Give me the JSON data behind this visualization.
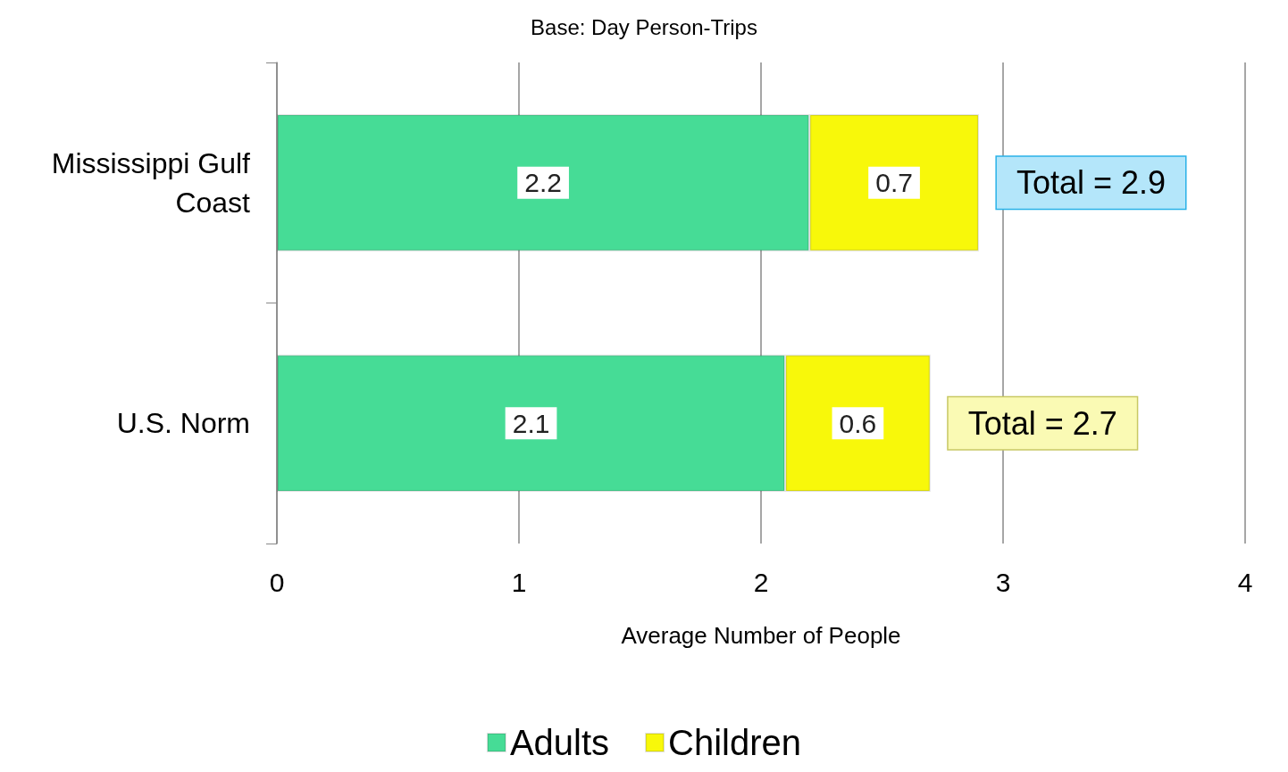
{
  "chart_data": {
    "type": "bar",
    "orientation": "horizontal",
    "stacked": true,
    "title": "Base: Day Person-Trips",
    "xlabel": "Average Number of People",
    "categories": [
      "Mississippi Gulf\nCoast",
      "U.S. Norm"
    ],
    "series": [
      {
        "name": "Adults",
        "color": "#46dc96",
        "values": [
          2.2,
          2.1
        ]
      },
      {
        "name": "Children",
        "color": "#f8f80a",
        "values": [
          0.7,
          0.6
        ]
      }
    ],
    "totals": [
      "Total = 2.9",
      "Total = 2.7"
    ],
    "xlim": [
      0,
      4
    ],
    "xticks": [
      0,
      1,
      2,
      3,
      4
    ],
    "grid": "x",
    "legend": "bottom",
    "data_labels": true
  }
}
